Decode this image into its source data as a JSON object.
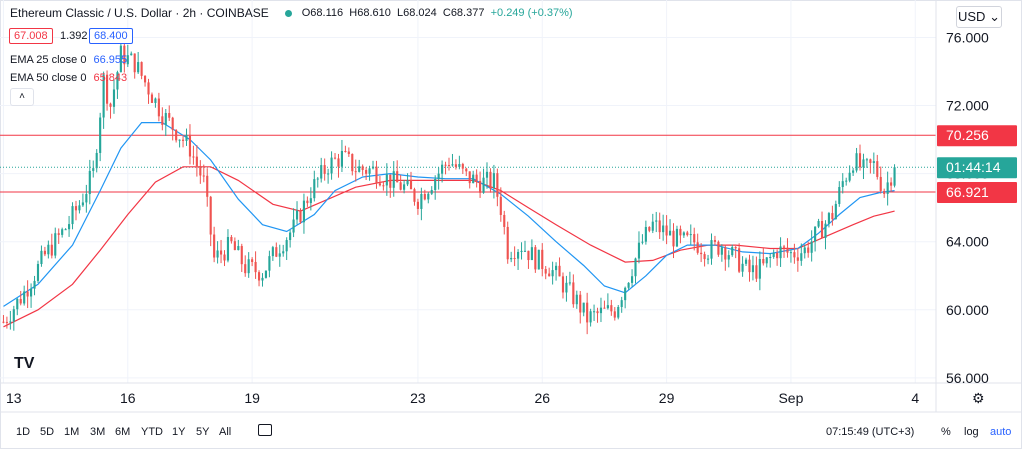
{
  "header": {
    "title": "Ethereum Classic / U.S. Dollar · 2h · COINBASE",
    "open": "O68.116",
    "high": "H68.610",
    "low": "L68.024",
    "close": "C68.377",
    "change": "+0.249 (+0.37%)"
  },
  "bid_box": "67.008",
  "spread": "1.392",
  "ask_box": "68.400",
  "indicators": [
    {
      "label": "EMA 25 close 0",
      "value": "66.955",
      "color": "#2962ff"
    },
    {
      "label": "EMA 50 close 0",
      "value": "65.843",
      "color": "#f23645"
    }
  ],
  "currency": "USD",
  "currency_chevron": "⌄",
  "collapse_glyph": "˄",
  "logo_text": "TV",
  "settings_glyph": "⚙",
  "calendar_icon": "calendar-icon",
  "price_tags": [
    {
      "text": "70.256",
      "value": 70.256,
      "bg": "#f23645"
    },
    {
      "text": "01:44:14",
      "value": 68.377,
      "bg": "#26a69a"
    },
    {
      "text": "66.921",
      "value": 66.921,
      "bg": "#f23645"
    }
  ],
  "ranges": [
    "1D",
    "5D",
    "1M",
    "3M",
    "6M",
    "YTD",
    "1Y",
    "5Y",
    "All"
  ],
  "clock": "07:15:49 (UTC+3)",
  "options": [
    "%",
    "log",
    "auto"
  ],
  "colors": {
    "up": "#26a69a",
    "down": "#ef5350",
    "ema25": "#2196f3",
    "ema50": "#f23645",
    "hline": "#f23645"
  },
  "chart_data": {
    "type": "candlestick",
    "title": "Ethereum Classic / U.S. Dollar · 2h · COINBASE",
    "x_ticks": [
      {
        "label": "13",
        "index": 0
      },
      {
        "label": "16",
        "index": 36
      },
      {
        "label": "19",
        "index": 72
      },
      {
        "label": "23",
        "index": 120
      },
      {
        "label": "26",
        "index": 156
      },
      {
        "label": "29",
        "index": 192
      },
      {
        "label": "Sep",
        "index": 228
      },
      {
        "label": "4",
        "index": 264
      }
    ],
    "y_ticks": [
      {
        "label": "76.000",
        "value": 76
      },
      {
        "label": "72.000",
        "value": 72
      },
      {
        "label": "68.000",
        "value": 68
      },
      {
        "label": "64.000",
        "value": 64
      },
      {
        "label": "60.000",
        "value": 60
      },
      {
        "label": "56.000",
        "value": 56
      }
    ],
    "ylim": [
      55.7,
      78.2
    ],
    "xlim": [
      -1,
      270
    ],
    "horizontal_lines": [
      70.256,
      66.921
    ],
    "last_price_line": 68.377,
    "keypoints": [
      [
        0,
        59.3
      ],
      [
        6,
        61.0
      ],
      [
        12,
        63.2
      ],
      [
        18,
        64.8
      ],
      [
        22,
        66.2
      ],
      [
        26,
        68.0
      ],
      [
        29,
        73.5
      ],
      [
        31,
        72.0
      ],
      [
        34,
        75.0
      ],
      [
        38,
        74.5
      ],
      [
        42,
        73.0
      ],
      [
        46,
        71.5
      ],
      [
        50,
        70.5
      ],
      [
        54,
        69.5
      ],
      [
        58,
        67.5
      ],
      [
        61,
        63.0
      ],
      [
        66,
        63.8
      ],
      [
        70,
        62.5
      ],
      [
        75,
        62.2
      ],
      [
        80,
        63.8
      ],
      [
        84,
        64.8
      ],
      [
        89,
        67.0
      ],
      [
        94,
        68.5
      ],
      [
        98,
        69.0
      ],
      [
        102,
        68.3
      ],
      [
        107,
        68.2
      ],
      [
        112,
        67.6
      ],
      [
        116,
        67.2
      ],
      [
        120,
        66.5
      ],
      [
        125,
        67.8
      ],
      [
        129,
        68.8
      ],
      [
        134,
        67.8
      ],
      [
        138,
        67.5
      ],
      [
        142,
        67.5
      ],
      [
        144,
        66.0
      ],
      [
        146,
        63.5
      ],
      [
        150,
        63.8
      ],
      [
        154,
        63.0
      ],
      [
        158,
        62.5
      ],
      [
        162,
        61.5
      ],
      [
        166,
        60.5
      ],
      [
        169,
        59.5
      ],
      [
        173,
        59.8
      ],
      [
        177,
        60.0
      ],
      [
        181,
        62.0
      ],
      [
        185,
        64.0
      ],
      [
        188,
        65.0
      ],
      [
        192,
        64.5
      ],
      [
        196,
        64.0
      ],
      [
        200,
        64.0
      ],
      [
        204,
        63.5
      ],
      [
        208,
        63.8
      ],
      [
        212,
        63.0
      ],
      [
        216,
        62.2
      ],
      [
        220,
        62.5
      ],
      [
        224,
        63.5
      ],
      [
        228,
        63.3
      ],
      [
        232,
        63.5
      ],
      [
        236,
        64.6
      ],
      [
        240,
        65.6
      ],
      [
        243,
        67.5
      ],
      [
        246,
        68.8
      ],
      [
        249,
        68.2
      ],
      [
        252,
        68.5
      ],
      [
        255,
        67.0
      ],
      [
        258,
        68.4
      ]
    ],
    "ema25": [
      [
        0,
        60.2
      ],
      [
        10,
        61.5
      ],
      [
        20,
        63.8
      ],
      [
        28,
        67.0
      ],
      [
        34,
        69.5
      ],
      [
        40,
        71.0
      ],
      [
        46,
        71.0
      ],
      [
        54,
        70.0
      ],
      [
        60,
        68.8
      ],
      [
        68,
        66.5
      ],
      [
        75,
        65.0
      ],
      [
        82,
        64.6
      ],
      [
        90,
        65.6
      ],
      [
        96,
        67.0
      ],
      [
        104,
        67.8
      ],
      [
        112,
        68.0
      ],
      [
        120,
        67.8
      ],
      [
        128,
        67.7
      ],
      [
        136,
        67.7
      ],
      [
        144,
        66.8
      ],
      [
        152,
        65.5
      ],
      [
        160,
        64.0
      ],
      [
        168,
        62.6
      ],
      [
        174,
        61.4
      ],
      [
        180,
        61.0
      ],
      [
        186,
        62.0
      ],
      [
        192,
        63.2
      ],
      [
        198,
        63.8
      ],
      [
        206,
        63.8
      ],
      [
        214,
        63.4
      ],
      [
        222,
        63.3
      ],
      [
        230,
        63.6
      ],
      [
        236,
        64.5
      ],
      [
        242,
        65.6
      ],
      [
        248,
        66.6
      ],
      [
        254,
        66.9
      ],
      [
        258,
        67.0
      ]
    ],
    "ema50": [
      [
        0,
        59.0
      ],
      [
        10,
        60.0
      ],
      [
        20,
        61.5
      ],
      [
        28,
        63.5
      ],
      [
        36,
        65.6
      ],
      [
        44,
        67.5
      ],
      [
        52,
        68.4
      ],
      [
        60,
        68.4
      ],
      [
        68,
        67.6
      ],
      [
        78,
        66.2
      ],
      [
        86,
        65.8
      ],
      [
        94,
        66.5
      ],
      [
        102,
        67.2
      ],
      [
        112,
        67.6
      ],
      [
        124,
        67.6
      ],
      [
        136,
        67.6
      ],
      [
        144,
        67.0
      ],
      [
        152,
        66.0
      ],
      [
        160,
        65.0
      ],
      [
        170,
        63.8
      ],
      [
        180,
        62.8
      ],
      [
        188,
        62.9
      ],
      [
        196,
        63.5
      ],
      [
        204,
        63.8
      ],
      [
        212,
        63.8
      ],
      [
        222,
        63.6
      ],
      [
        230,
        63.6
      ],
      [
        238,
        64.3
      ],
      [
        246,
        65.0
      ],
      [
        252,
        65.5
      ],
      [
        258,
        65.8
      ]
    ]
  }
}
